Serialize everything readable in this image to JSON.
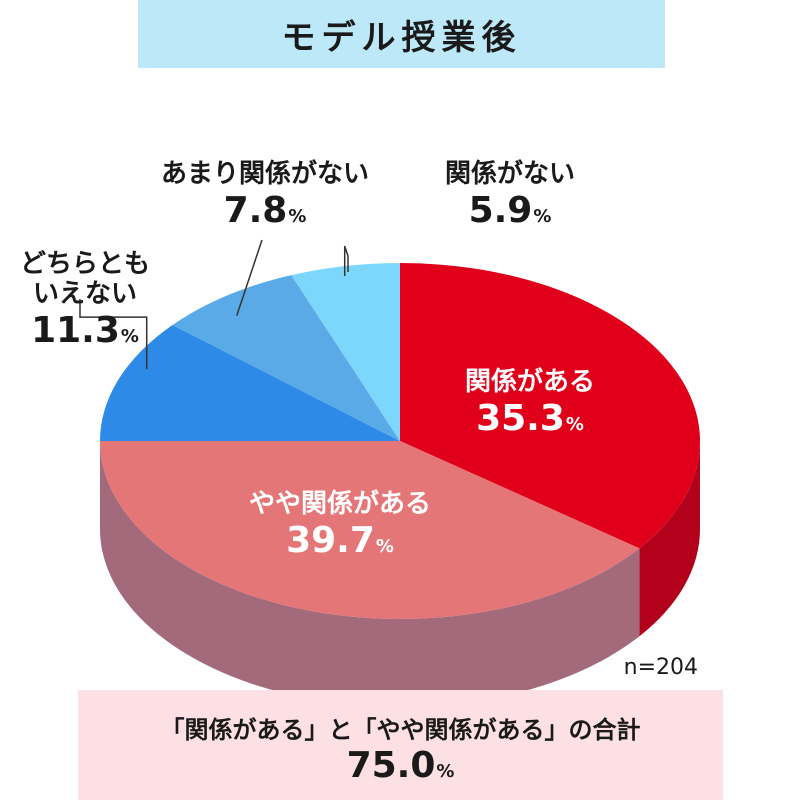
{
  "title": "モデル授業後",
  "colors": {
    "title_bg": "#bde8f8",
    "total_bg": "#fde0e4"
  },
  "chart_data": {
    "type": "pie",
    "title": "モデル授業後",
    "note": "n=204",
    "slices": [
      {
        "label": "関係がある",
        "value": 35.3,
        "display": "35.3",
        "color": "#e0001a",
        "side": "#b3001b"
      },
      {
        "label": "やや関係がある",
        "value": 39.7,
        "display": "39.7",
        "color": "#e47678",
        "side": "#a26a7a"
      },
      {
        "label": "どちらとも いえない",
        "value": 11.3,
        "display": "11.3",
        "color": "#2d8ae6",
        "side": "#1f66b0"
      },
      {
        "label": "あまり関係がない",
        "value": 7.8,
        "display": "7.8",
        "color": "#5aaae8",
        "side": "#3e86c4"
      },
      {
        "label": "関係がない",
        "value": 5.9,
        "display": "5.9",
        "color": "#7dd6fb",
        "side": "#5cb4d8"
      }
    ],
    "percent_sign": "%"
  },
  "labels": {
    "slice1_name": "関係がある",
    "slice2_name": "やや関係がある",
    "slice3_name_line1": "どちらとも",
    "slice3_name_line2": "いえない",
    "slice4_name": "あまり関係がない",
    "slice5_name": "関係がない"
  },
  "total": {
    "caption": "「関係がある」と「やや関係がある」の合計",
    "value": "75.0",
    "percent_sign": "%"
  }
}
